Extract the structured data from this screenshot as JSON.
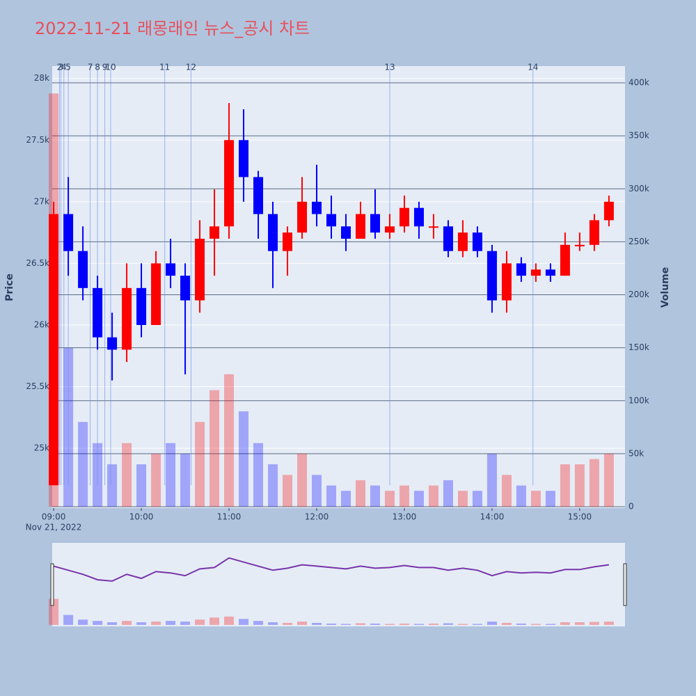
{
  "chart_data": {
    "type": "candlestick",
    "title": "2022-11-21 래몽래인 뉴스_공시 차트",
    "y_title": "Price",
    "y2_title": "Volume",
    "x_date_label": "Nov 21, 2022",
    "up_color": "#ff0000",
    "down_color": "#0000ff",
    "x": [
      "09:00",
      "09:10",
      "09:20",
      "09:30",
      "09:40",
      "09:50",
      "10:00",
      "10:10",
      "10:20",
      "10:30",
      "10:40",
      "10:50",
      "11:00",
      "11:10",
      "11:20",
      "11:30",
      "11:40",
      "11:50",
      "12:00",
      "12:10",
      "12:20",
      "12:30",
      "12:40",
      "12:50",
      "13:00",
      "13:10",
      "13:20",
      "13:30",
      "13:40",
      "13:50",
      "14:00",
      "14:10",
      "14:20",
      "14:30",
      "14:40",
      "14:50",
      "15:00",
      "15:10",
      "15:20"
    ],
    "open": [
      24700,
      26900,
      26600,
      26300,
      25900,
      25800,
      26300,
      26000,
      26500,
      26400,
      26200,
      26700,
      26800,
      27500,
      27200,
      26900,
      26600,
      26750,
      27000,
      26900,
      26800,
      26700,
      26900,
      26750,
      26800,
      26950,
      26800,
      26800,
      26600,
      26750,
      26600,
      26200,
      26500,
      26400,
      26450,
      26400,
      26650,
      26650,
      26850
    ],
    "high": [
      27000,
      27200,
      26800,
      26400,
      26100,
      26500,
      26500,
      26600,
      26700,
      26500,
      26850,
      27100,
      27800,
      27750,
      27250,
      27000,
      26800,
      27200,
      27300,
      27050,
      26900,
      27000,
      27100,
      26900,
      27050,
      27000,
      26900,
      26850,
      26850,
      26800,
      26650,
      26600,
      26550,
      26500,
      26500,
      26750,
      26750,
      26900,
      27050
    ],
    "low": [
      24700,
      26400,
      26200,
      25800,
      25550,
      25700,
      25900,
      26000,
      26300,
      25600,
      26100,
      26400,
      26700,
      27000,
      26700,
      26300,
      26400,
      26700,
      26800,
      26700,
      26600,
      26700,
      26700,
      26700,
      26750,
      26700,
      26700,
      26550,
      26550,
      26550,
      26100,
      26100,
      26350,
      26350,
      26350,
      26400,
      26600,
      26600,
      26800
    ],
    "close": [
      26900,
      26600,
      26300,
      25900,
      25800,
      26300,
      26000,
      26500,
      26400,
      26200,
      26700,
      26800,
      27500,
      27200,
      26900,
      26600,
      26750,
      27000,
      26900,
      26800,
      26700,
      26900,
      26750,
      26800,
      26950,
      26800,
      26800,
      26600,
      26750,
      26600,
      26200,
      26500,
      26400,
      26450,
      26400,
      26650,
      26650,
      26850,
      27000
    ],
    "volume": [
      390000,
      150000,
      80000,
      60000,
      40000,
      60000,
      40000,
      50000,
      60000,
      50000,
      80000,
      110000,
      125000,
      90000,
      60000,
      40000,
      30000,
      50000,
      30000,
      20000,
      15000,
      25000,
      20000,
      15000,
      20000,
      15000,
      20000,
      25000,
      15000,
      15000,
      50000,
      30000,
      20000,
      15000,
      15000,
      40000,
      40000,
      45000,
      50000
    ],
    "xlim": [
      "08:59",
      "15:31"
    ],
    "xticks": [
      "09:00",
      "10:00",
      "11:00",
      "12:00",
      "13:00",
      "14:00",
      "15:00"
    ],
    "ylim": [
      24515,
      28100
    ],
    "yticks": [
      {
        "value": 25000,
        "label": "25k"
      },
      {
        "value": 25500,
        "label": "25.5k"
      },
      {
        "value": 26000,
        "label": "26k"
      },
      {
        "value": 26500,
        "label": "26.5k"
      },
      {
        "value": 27000,
        "label": "27k"
      },
      {
        "value": 27500,
        "label": "27.5k"
      },
      {
        "value": 28000,
        "label": "28k"
      }
    ],
    "y2lim": [
      -1300,
      415800
    ],
    "y2ticks": [
      0,
      {
        "value": 50000,
        "label": "50k"
      },
      {
        "value": 100000,
        "label": "100k"
      },
      {
        "value": 150000,
        "label": "150k"
      },
      {
        "value": 200000,
        "label": "200k"
      },
      {
        "value": 250000,
        "label": "250k"
      },
      {
        "value": 300000,
        "label": "300k"
      },
      {
        "value": 350000,
        "label": "350k"
      },
      {
        "value": 400000,
        "label": "400k"
      }
    ],
    "news_lines": [
      {
        "label": "2",
        "x": "09:04"
      },
      {
        "label": "3",
        "x": "09:05"
      },
      {
        "label": "4",
        "x": "09:07"
      },
      {
        "label": "5",
        "x": "09:10"
      },
      {
        "label": "7",
        "x": "09:25"
      },
      {
        "label": "8",
        "x": "09:30"
      },
      {
        "label": "9",
        "x": "09:35"
      },
      {
        "label": "10",
        "x": "09:39"
      },
      {
        "label": "11",
        "x": "10:16"
      },
      {
        "label": "12",
        "x": "10:34"
      },
      {
        "label": "13",
        "x": "12:50"
      },
      {
        "label": "14",
        "x": "14:28"
      }
    ]
  }
}
